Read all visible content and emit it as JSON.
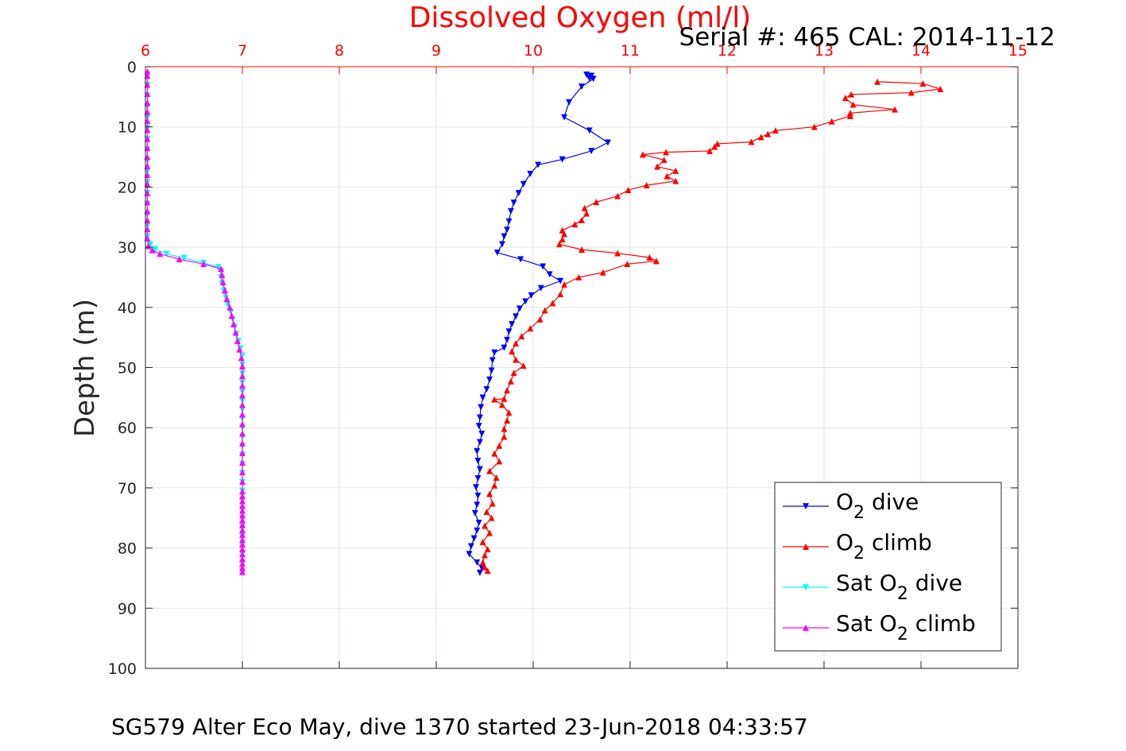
{
  "chart_data": {
    "type": "line",
    "title": "Dissolved Oxygen (ml/l)",
    "subtitle": "Serial #: 465  CAL: 2014-11-12",
    "ylabel": "Depth (m)",
    "xlabel": "",
    "footer": "SG579 Alter Eco May, dive 1370 started 23-Jun-2018 04:33:57",
    "xlim": [
      6,
      15
    ],
    "ylim": [
      0,
      100
    ],
    "y_reversed": true,
    "x_axis_position": "top",
    "xticks": [
      "6",
      "7",
      "8",
      "9",
      "10",
      "11",
      "12",
      "13",
      "14",
      "15"
    ],
    "yticks": [
      "0",
      "10",
      "20",
      "30",
      "40",
      "50",
      "60",
      "70",
      "80",
      "90",
      "100"
    ],
    "grid": true,
    "legend_position": "bottom-right",
    "colors": {
      "title": "#ff0000",
      "xticks": "#ff0000",
      "grid": "#e6e6e6"
    },
    "series": [
      {
        "name": "O2 dive",
        "legend_main": "O",
        "legend_sub": "2",
        "legend_rest": " dive",
        "color": "#0000ff",
        "marker": "triangle-down",
        "points": [
          [
            10.55,
            1.3
          ],
          [
            10.6,
            1.5
          ],
          [
            10.58,
            1.9
          ],
          [
            10.62,
            2.0
          ],
          [
            10.5,
            3.3
          ],
          [
            10.37,
            5.9
          ],
          [
            10.32,
            8.4
          ],
          [
            10.58,
            10.6
          ],
          [
            10.77,
            12.6
          ],
          [
            10.6,
            14.0
          ],
          [
            10.3,
            15.4
          ],
          [
            10.05,
            16.3
          ],
          [
            9.97,
            17.8
          ],
          [
            9.9,
            19.5
          ],
          [
            9.85,
            21.0
          ],
          [
            9.8,
            22.6
          ],
          [
            9.77,
            24.0
          ],
          [
            9.75,
            25.7
          ],
          [
            9.73,
            27.1
          ],
          [
            9.7,
            28.2
          ],
          [
            9.68,
            29.5
          ],
          [
            9.63,
            30.9
          ],
          [
            9.87,
            32.0
          ],
          [
            10.1,
            33.2
          ],
          [
            10.17,
            34.5
          ],
          [
            10.28,
            35.6
          ],
          [
            10.08,
            36.8
          ],
          [
            9.98,
            38.0
          ],
          [
            9.92,
            39.0
          ],
          [
            9.86,
            40.2
          ],
          [
            9.82,
            41.5
          ],
          [
            9.78,
            42.8
          ],
          [
            9.75,
            44.0
          ],
          [
            9.73,
            45.4
          ],
          [
            9.7,
            46.7
          ],
          [
            9.6,
            47.5
          ],
          [
            9.58,
            48.8
          ],
          [
            9.57,
            50.5
          ],
          [
            9.55,
            52.0
          ],
          [
            9.52,
            53.6
          ],
          [
            9.48,
            55.0
          ],
          [
            9.46,
            56.6
          ],
          [
            9.45,
            58.3
          ],
          [
            9.44,
            59.7
          ],
          [
            9.47,
            61.0
          ],
          [
            9.45,
            62.4
          ],
          [
            9.42,
            63.9
          ],
          [
            9.43,
            65.5
          ],
          [
            9.45,
            66.9
          ],
          [
            9.43,
            68.4
          ],
          [
            9.41,
            69.9
          ],
          [
            9.43,
            71.3
          ],
          [
            9.42,
            72.8
          ],
          [
            9.4,
            74.2
          ],
          [
            9.44,
            75.8
          ],
          [
            9.42,
            77.1
          ],
          [
            9.39,
            78.4
          ],
          [
            9.36,
            79.7
          ],
          [
            9.34,
            81.0
          ],
          [
            9.42,
            82.4
          ],
          [
            9.47,
            83.3
          ],
          [
            9.45,
            84.1
          ]
        ]
      },
      {
        "name": "O2 climb",
        "legend_main": "O",
        "legend_sub": "2",
        "legend_rest": " climb",
        "color": "#ff0000",
        "marker": "triangle-up",
        "points": [
          [
            9.53,
            83.8
          ],
          [
            9.5,
            83.2
          ],
          [
            9.48,
            82.4
          ],
          [
            9.5,
            81.2
          ],
          [
            9.53,
            80.2
          ],
          [
            9.48,
            79.0
          ],
          [
            9.55,
            77.5
          ],
          [
            9.5,
            76.3
          ],
          [
            9.57,
            75.0
          ],
          [
            9.52,
            74.0
          ],
          [
            9.58,
            72.6
          ],
          [
            9.55,
            71.0
          ],
          [
            9.6,
            69.6
          ],
          [
            9.62,
            68.3
          ],
          [
            9.55,
            67.2
          ],
          [
            9.65,
            65.6
          ],
          [
            9.6,
            64.3
          ],
          [
            9.65,
            63.0
          ],
          [
            9.7,
            61.5
          ],
          [
            9.7,
            60.2
          ],
          [
            9.73,
            58.8
          ],
          [
            9.75,
            57.5
          ],
          [
            9.68,
            56.2
          ],
          [
            9.6,
            55.3
          ],
          [
            9.7,
            55.2
          ],
          [
            9.73,
            53.8
          ],
          [
            9.77,
            52.3
          ],
          [
            9.8,
            50.9
          ],
          [
            9.9,
            49.7
          ],
          [
            9.82,
            48.7
          ],
          [
            9.78,
            47.3
          ],
          [
            9.82,
            46.0
          ],
          [
            9.88,
            44.8
          ],
          [
            9.97,
            43.5
          ],
          [
            10.07,
            42.0
          ],
          [
            10.12,
            40.5
          ],
          [
            10.2,
            39.3
          ],
          [
            10.28,
            37.8
          ],
          [
            10.32,
            36.2
          ],
          [
            10.47,
            35.0
          ],
          [
            10.72,
            34.2
          ],
          [
            10.97,
            32.8
          ],
          [
            11.27,
            32.3
          ],
          [
            11.2,
            31.7
          ],
          [
            10.87,
            31.0
          ],
          [
            10.5,
            30.4
          ],
          [
            10.27,
            29.5
          ],
          [
            10.3,
            28.7
          ],
          [
            10.32,
            27.8
          ],
          [
            10.3,
            27.2
          ],
          [
            10.43,
            26.2
          ],
          [
            10.5,
            25.5
          ],
          [
            10.55,
            24.4
          ],
          [
            10.53,
            23.5
          ],
          [
            10.65,
            22.5
          ],
          [
            10.87,
            21.5
          ],
          [
            10.98,
            20.5
          ],
          [
            11.17,
            19.7
          ],
          [
            11.47,
            19.0
          ],
          [
            11.38,
            18.2
          ],
          [
            11.47,
            17.3
          ],
          [
            11.28,
            16.6
          ],
          [
            11.35,
            15.5
          ],
          [
            11.13,
            14.6
          ],
          [
            11.37,
            14.2
          ],
          [
            11.82,
            14.0
          ],
          [
            11.87,
            13.3
          ],
          [
            11.9,
            12.8
          ],
          [
            12.25,
            12.5
          ],
          [
            12.35,
            11.7
          ],
          [
            12.42,
            11.2
          ],
          [
            12.5,
            10.6
          ],
          [
            12.9,
            10.0
          ],
          [
            13.08,
            9.1
          ],
          [
            13.27,
            8.2
          ],
          [
            13.27,
            7.7
          ],
          [
            13.73,
            7.1
          ],
          [
            13.3,
            6.3
          ],
          [
            13.22,
            5.2
          ],
          [
            13.28,
            4.6
          ],
          [
            13.9,
            4.3
          ],
          [
            14.2,
            3.7
          ],
          [
            14.02,
            2.8
          ],
          [
            13.55,
            2.5
          ]
        ]
      },
      {
        "name": "Sat O2 dive",
        "legend_main": "Sat O",
        "legend_sub": "2",
        "legend_rest": " dive",
        "color": "#00ffff",
        "marker": "triangle-down",
        "points": [
          [
            6.02,
            1.3
          ],
          [
            6.02,
            3.0
          ],
          [
            6.02,
            4.8
          ],
          [
            6.02,
            6.6
          ],
          [
            6.02,
            8.4
          ],
          [
            6.02,
            10.2
          ],
          [
            6.02,
            12.0
          ],
          [
            6.02,
            13.8
          ],
          [
            6.02,
            15.6
          ],
          [
            6.02,
            17.4
          ],
          [
            6.02,
            19.2
          ],
          [
            6.02,
            21.0
          ],
          [
            6.02,
            22.8
          ],
          [
            6.02,
            24.6
          ],
          [
            6.02,
            26.4
          ],
          [
            6.02,
            28.2
          ],
          [
            6.05,
            29.5
          ],
          [
            6.1,
            30.3
          ],
          [
            6.22,
            31.1
          ],
          [
            6.4,
            31.8
          ],
          [
            6.6,
            32.6
          ],
          [
            6.75,
            33.3
          ],
          [
            6.78,
            34.0
          ],
          [
            6.78,
            35.0
          ],
          [
            6.79,
            36.0
          ],
          [
            6.81,
            37.2
          ],
          [
            6.83,
            38.4
          ],
          [
            6.85,
            39.6
          ],
          [
            6.88,
            40.8
          ],
          [
            6.9,
            42.0
          ],
          [
            6.92,
            43.2
          ],
          [
            6.94,
            44.4
          ],
          [
            6.96,
            45.6
          ],
          [
            6.98,
            46.8
          ],
          [
            7.0,
            48.0
          ],
          [
            7.0,
            49.5
          ],
          [
            7.0,
            51.0
          ],
          [
            7.0,
            52.5
          ],
          [
            7.0,
            54.0
          ],
          [
            7.0,
            55.5
          ],
          [
            7.0,
            57.0
          ],
          [
            7.0,
            58.5
          ],
          [
            7.0,
            60.0
          ],
          [
            7.0,
            61.5
          ],
          [
            7.0,
            63.0
          ],
          [
            7.0,
            64.5
          ],
          [
            7.0,
            66.0
          ],
          [
            7.0,
            67.5
          ],
          [
            7.0,
            69.0
          ],
          [
            7.0,
            70.5
          ],
          [
            7.0,
            72.0
          ],
          [
            7.0,
            73.5
          ],
          [
            7.0,
            75.0
          ],
          [
            7.0,
            76.5
          ],
          [
            7.0,
            78.0
          ],
          [
            7.0,
            79.5
          ],
          [
            7.0,
            81.0
          ],
          [
            7.0,
            82.5
          ],
          [
            7.0,
            84.1
          ]
        ]
      },
      {
        "name": "Sat O2 climb",
        "legend_main": "Sat O",
        "legend_sub": "2",
        "legend_rest": " climb",
        "color": "#ff00ff",
        "marker": "triangle-up",
        "points": [
          [
            7.0,
            84.0
          ],
          [
            7.0,
            83.3
          ],
          [
            7.0,
            82.6
          ],
          [
            7.0,
            81.8
          ],
          [
            7.0,
            81.0
          ],
          [
            7.0,
            80.2
          ],
          [
            7.0,
            79.4
          ],
          [
            7.0,
            78.6
          ],
          [
            7.0,
            77.8
          ],
          [
            7.0,
            77.0
          ],
          [
            7.0,
            76.2
          ],
          [
            7.0,
            75.4
          ],
          [
            7.0,
            74.6
          ],
          [
            7.0,
            73.8
          ],
          [
            7.0,
            73.0
          ],
          [
            7.0,
            72.2
          ],
          [
            7.0,
            71.4
          ],
          [
            7.0,
            70.6
          ],
          [
            7.0,
            69.0
          ],
          [
            7.0,
            67.4
          ],
          [
            7.0,
            65.8
          ],
          [
            7.0,
            64.2
          ],
          [
            7.0,
            62.6
          ],
          [
            7.0,
            61.0
          ],
          [
            7.0,
            59.4
          ],
          [
            7.0,
            57.8
          ],
          [
            7.0,
            56.2
          ],
          [
            7.0,
            54.6
          ],
          [
            7.0,
            53.0
          ],
          [
            7.0,
            51.4
          ],
          [
            7.0,
            49.8
          ],
          [
            6.99,
            48.4
          ],
          [
            6.97,
            47.0
          ],
          [
            6.95,
            45.6
          ],
          [
            6.93,
            44.2
          ],
          [
            6.91,
            42.8
          ],
          [
            6.89,
            41.4
          ],
          [
            6.87,
            40.0
          ],
          [
            6.84,
            38.6
          ],
          [
            6.82,
            37.2
          ],
          [
            6.8,
            35.8
          ],
          [
            6.79,
            34.6
          ],
          [
            6.78,
            33.6
          ],
          [
            6.6,
            32.8
          ],
          [
            6.35,
            32.0
          ],
          [
            6.15,
            31.1
          ],
          [
            6.07,
            30.5
          ],
          [
            6.03,
            29.8
          ],
          [
            6.02,
            28.5
          ],
          [
            6.02,
            27.0
          ],
          [
            6.02,
            25.5
          ],
          [
            6.02,
            24.0
          ],
          [
            6.02,
            22.5
          ],
          [
            6.02,
            21.0
          ],
          [
            6.02,
            19.5
          ],
          [
            6.02,
            18.0
          ],
          [
            6.02,
            16.5
          ],
          [
            6.02,
            15.0
          ],
          [
            6.02,
            13.5
          ],
          [
            6.02,
            12.0
          ],
          [
            6.02,
            10.5
          ],
          [
            6.02,
            9.0
          ],
          [
            6.02,
            7.5
          ],
          [
            6.02,
            6.0
          ],
          [
            6.02,
            4.5
          ],
          [
            6.02,
            3.0
          ],
          [
            6.02,
            1.5
          ],
          [
            6.02,
            0.8
          ]
        ]
      }
    ]
  }
}
